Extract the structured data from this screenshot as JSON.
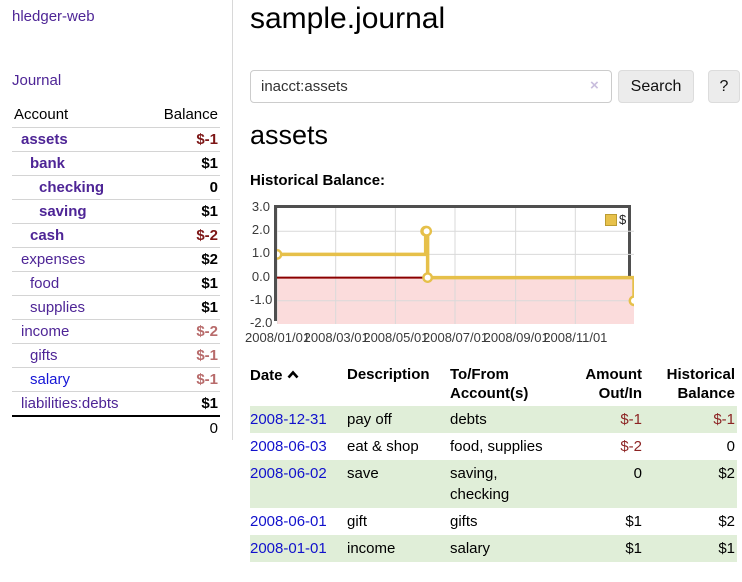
{
  "app_title": "hledger-web",
  "sidebar": {
    "journal_link": "Journal",
    "accounts_table": {
      "col_account": "Account",
      "col_balance": "Balance",
      "rows": [
        {
          "name": "assets",
          "depth": 1,
          "bold": true,
          "link": "purple",
          "balance": "$-1",
          "bclass": "neg-strong"
        },
        {
          "name": "bank",
          "depth": 2,
          "bold": true,
          "link": "purple",
          "balance": "$1",
          "bclass": ""
        },
        {
          "name": "checking",
          "depth": 3,
          "bold": true,
          "link": "purple",
          "balance": "0",
          "bclass": ""
        },
        {
          "name": "saving",
          "depth": 3,
          "bold": true,
          "link": "purple",
          "balance": "$1",
          "bclass": ""
        },
        {
          "name": "cash",
          "depth": 2,
          "bold": true,
          "link": "purple",
          "balance": "$-2",
          "bclass": "neg-strong"
        },
        {
          "name": "expenses",
          "depth": 1,
          "bold": false,
          "link": "purple",
          "balance": "$2",
          "bclass": ""
        },
        {
          "name": "food",
          "depth": 2,
          "bold": false,
          "link": "purple",
          "balance": "$1",
          "bclass": ""
        },
        {
          "name": "supplies",
          "depth": 2,
          "bold": false,
          "link": "purple",
          "balance": "$1",
          "bclass": ""
        },
        {
          "name": "income",
          "depth": 1,
          "bold": false,
          "link": "purple",
          "balance": "$-2",
          "bclass": "neg-soft"
        },
        {
          "name": "gifts",
          "depth": 2,
          "bold": false,
          "link": "purple",
          "balance": "$-1",
          "bclass": "neg-soft"
        },
        {
          "name": "salary",
          "depth": 2,
          "bold": false,
          "link": "blue",
          "balance": "$-1",
          "bclass": "neg-soft"
        },
        {
          "name": "liabilities:debts",
          "depth": 1,
          "bold": false,
          "link": "purple",
          "balance": "$1",
          "bclass": ""
        }
      ],
      "total": "0"
    }
  },
  "main": {
    "title": "sample.journal",
    "search": {
      "value": "inacct:assets",
      "clear_icon": "×",
      "search_button": "Search",
      "help_button": "?"
    },
    "account_heading": "assets",
    "section_label": "Historical Balance:"
  },
  "chart_data": {
    "type": "line",
    "step": true,
    "title": "Historical Balance",
    "series": [
      {
        "name": "$",
        "color": "#e6c04a",
        "points": [
          [
            "2008-01-01",
            1
          ],
          [
            "2008-06-01",
            2
          ],
          [
            "2008-06-02",
            2
          ],
          [
            "2008-06-03",
            0
          ],
          [
            "2008-12-31",
            -1
          ]
        ]
      }
    ],
    "x_range": [
      "2008-01-01",
      "2008-12-31"
    ],
    "x_days": 365,
    "x_ticks": [
      "2008/01/01",
      "2008/03/01",
      "2008/05/01",
      "2008/07/01",
      "2008/09/01",
      "2008/11/01"
    ],
    "y_ticks": [
      3.0,
      2.0,
      1.0,
      0.0,
      -1.0,
      -2.0
    ],
    "ylim": [
      -2,
      3
    ],
    "grid_on": true,
    "grid_color": "#d9d9d9",
    "zero_line_color": "#8b0000",
    "negative_fill": "#fbdcdc",
    "legend": {
      "label": "$",
      "position": "top-right"
    }
  },
  "register": {
    "headers": {
      "date": "Date",
      "description": "Description",
      "accounts": "To/From\nAccount(s)",
      "amount": "Amount\nOut/In",
      "balance": "Historical\nBalance"
    },
    "rows": [
      {
        "date": "2008-12-31",
        "description": "pay off",
        "accounts": "debts",
        "amount": "$-1",
        "balance": "$-1"
      },
      {
        "date": "2008-06-03",
        "description": "eat & shop",
        "accounts": "food, supplies",
        "amount": "$-2",
        "balance": "0"
      },
      {
        "date": "2008-06-02",
        "description": "save",
        "accounts": "saving,\nchecking",
        "amount": "0",
        "balance": "$2"
      },
      {
        "date": "2008-06-01",
        "description": "gift",
        "accounts": "gifts",
        "amount": "$1",
        "balance": "$2"
      },
      {
        "date": "2008-01-01",
        "description": "income",
        "accounts": "salary",
        "amount": "$1",
        "balance": "$1"
      }
    ]
  }
}
